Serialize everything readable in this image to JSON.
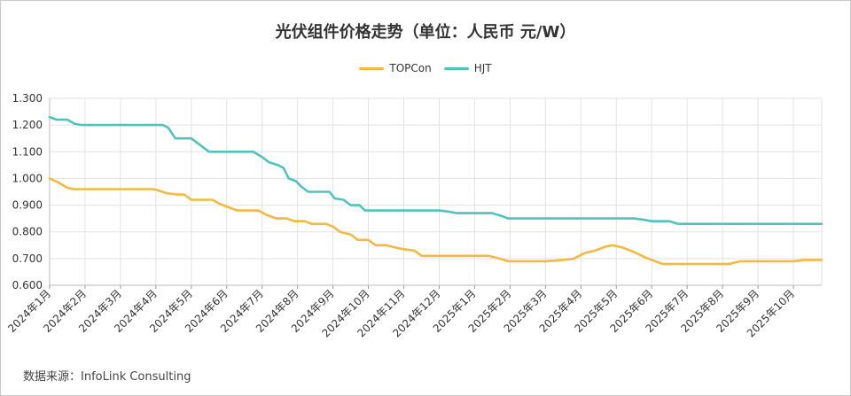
{
  "chart_data": {
    "type": "line",
    "title": "光伏组件价格走势（单位：人民币 元/W）",
    "source": "数据来源：InfoLink Consulting",
    "ylim": [
      0.6,
      1.3
    ],
    "y_ticks": [
      "1.300",
      "1.200",
      "1.100",
      "1.000",
      "0.900",
      "0.800",
      "0.700",
      "0.600"
    ],
    "grid": "on",
    "legend_position": "top-center",
    "x_ticks": [
      "2024年1月",
      "2024年2月",
      "2024年3月",
      "2024年4月",
      "2024年5月",
      "2024年6月",
      "2024年7月",
      "2024年8月",
      "2024年9月",
      "2024年10月",
      "2024年11月",
      "2024年12月",
      "2025年1月",
      "2025年2月",
      "2025年3月",
      "2025年4月",
      "2025年5月",
      "2025年6月",
      "2025年7月",
      "2025年8月",
      "2025年9月",
      "2025年10月"
    ],
    "x_month_index_range": [
      0,
      21.8
    ],
    "series": [
      {
        "name": "TOPCon",
        "color": "#f4b942",
        "points": [
          [
            0,
            1.0
          ],
          [
            0.25,
            0.985
          ],
          [
            0.5,
            0.965
          ],
          [
            0.7,
            0.96
          ],
          [
            1,
            0.96
          ],
          [
            2,
            0.96
          ],
          [
            2.6,
            0.96
          ],
          [
            2.9,
            0.96
          ],
          [
            3,
            0.958
          ],
          [
            3.3,
            0.945
          ],
          [
            3.6,
            0.94
          ],
          [
            3.8,
            0.94
          ],
          [
            4.0,
            0.92
          ],
          [
            4.3,
            0.92
          ],
          [
            4.6,
            0.92
          ],
          [
            4.8,
            0.905
          ],
          [
            5.0,
            0.895
          ],
          [
            5.3,
            0.88
          ],
          [
            5.6,
            0.88
          ],
          [
            5.9,
            0.88
          ],
          [
            6.1,
            0.865
          ],
          [
            6.4,
            0.85
          ],
          [
            6.7,
            0.85
          ],
          [
            6.9,
            0.84
          ],
          [
            7.2,
            0.84
          ],
          [
            7.4,
            0.83
          ],
          [
            7.8,
            0.83
          ],
          [
            8.0,
            0.82
          ],
          [
            8.2,
            0.8
          ],
          [
            8.5,
            0.79
          ],
          [
            8.7,
            0.77
          ],
          [
            9.0,
            0.77
          ],
          [
            9.2,
            0.75
          ],
          [
            9.5,
            0.75
          ],
          [
            9.8,
            0.74
          ],
          [
            10.0,
            0.735
          ],
          [
            10.3,
            0.73
          ],
          [
            10.5,
            0.71
          ],
          [
            11.0,
            0.71
          ],
          [
            11.5,
            0.71
          ],
          [
            12.0,
            0.71
          ],
          [
            12.4,
            0.71
          ],
          [
            12.7,
            0.7
          ],
          [
            12.95,
            0.69
          ],
          [
            13.5,
            0.69
          ],
          [
            14.0,
            0.69
          ],
          [
            14.5,
            0.695
          ],
          [
            14.8,
            0.7
          ],
          [
            15.1,
            0.72
          ],
          [
            15.4,
            0.73
          ],
          [
            15.7,
            0.745
          ],
          [
            15.9,
            0.75
          ],
          [
            16.2,
            0.74
          ],
          [
            16.5,
            0.725
          ],
          [
            16.8,
            0.705
          ],
          [
            17.0,
            0.695
          ],
          [
            17.3,
            0.68
          ],
          [
            17.6,
            0.68
          ],
          [
            18.0,
            0.68
          ],
          [
            18.5,
            0.68
          ],
          [
            19.0,
            0.68
          ],
          [
            19.2,
            0.68
          ],
          [
            19.5,
            0.69
          ],
          [
            20.0,
            0.69
          ],
          [
            20.5,
            0.69
          ],
          [
            21.0,
            0.69
          ],
          [
            21.3,
            0.695
          ],
          [
            21.8,
            0.695
          ]
        ]
      },
      {
        "name": "HJT",
        "color": "#4fc4bc",
        "points": [
          [
            0,
            1.23
          ],
          [
            0.2,
            1.22
          ],
          [
            0.5,
            1.22
          ],
          [
            0.7,
            1.205
          ],
          [
            0.9,
            1.2
          ],
          [
            1,
            1.2
          ],
          [
            2,
            1.2
          ],
          [
            3,
            1.2
          ],
          [
            3.2,
            1.2
          ],
          [
            3.35,
            1.19
          ],
          [
            3.55,
            1.15
          ],
          [
            3.8,
            1.15
          ],
          [
            4.0,
            1.15
          ],
          [
            4.2,
            1.13
          ],
          [
            4.5,
            1.1
          ],
          [
            5,
            1.1
          ],
          [
            5.5,
            1.1
          ],
          [
            5.75,
            1.1
          ],
          [
            6.0,
            1.08
          ],
          [
            6.2,
            1.06
          ],
          [
            6.45,
            1.05
          ],
          [
            6.6,
            1.04
          ],
          [
            6.75,
            1.0
          ],
          [
            6.95,
            0.99
          ],
          [
            7.1,
            0.97
          ],
          [
            7.3,
            0.95
          ],
          [
            7.7,
            0.95
          ],
          [
            7.9,
            0.95
          ],
          [
            8.05,
            0.925
          ],
          [
            8.3,
            0.92
          ],
          [
            8.5,
            0.9
          ],
          [
            8.75,
            0.9
          ],
          [
            8.9,
            0.88
          ],
          [
            9.5,
            0.88
          ],
          [
            10,
            0.88
          ],
          [
            10.5,
            0.88
          ],
          [
            11.0,
            0.88
          ],
          [
            11.3,
            0.875
          ],
          [
            11.5,
            0.87
          ],
          [
            12.0,
            0.87
          ],
          [
            12.5,
            0.87
          ],
          [
            12.75,
            0.86
          ],
          [
            12.95,
            0.85
          ],
          [
            13.5,
            0.85
          ],
          [
            14.0,
            0.85
          ],
          [
            15.0,
            0.85
          ],
          [
            16.0,
            0.85
          ],
          [
            16.5,
            0.85
          ],
          [
            16.8,
            0.845
          ],
          [
            17.0,
            0.84
          ],
          [
            17.5,
            0.84
          ],
          [
            17.75,
            0.83
          ],
          [
            18.0,
            0.83
          ],
          [
            19.0,
            0.83
          ],
          [
            20.0,
            0.83
          ],
          [
            21.0,
            0.83
          ],
          [
            21.8,
            0.83
          ]
        ]
      }
    ]
  }
}
